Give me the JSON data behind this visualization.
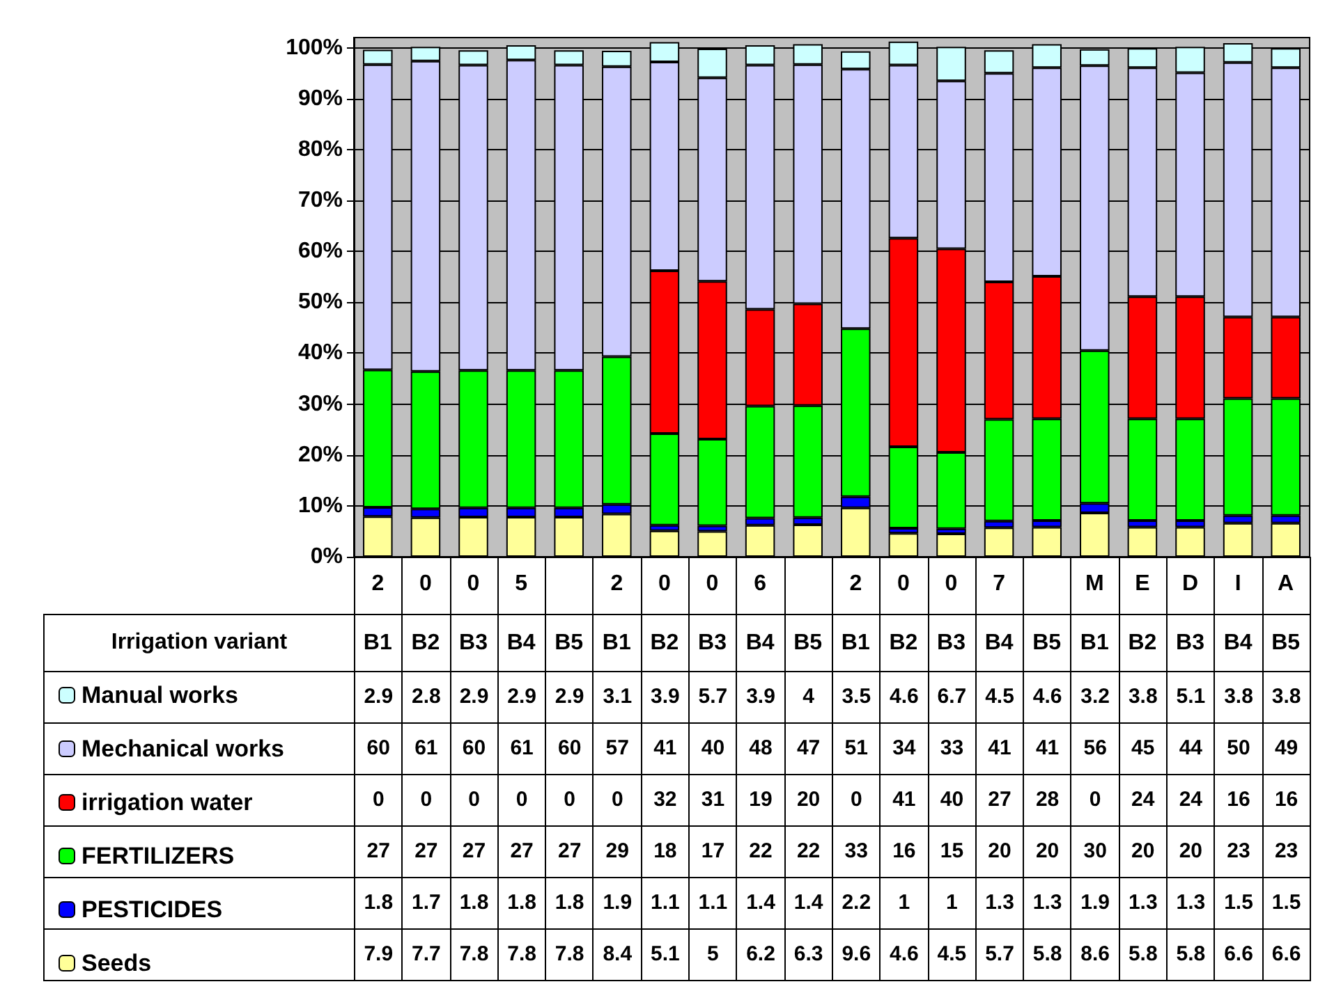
{
  "chart_data": {
    "type": "bar",
    "stacked": true,
    "xlabel": "Irrigation variant",
    "categories": [
      "B1",
      "B2",
      "B3",
      "B4",
      "B5",
      "B1",
      "B2",
      "B3",
      "B4",
      "B5",
      "B1",
      "B2",
      "B3",
      "B4",
      "B5",
      "B1",
      "B2",
      "B3",
      "B4",
      "B5"
    ],
    "annotations": [
      "2 0 0 5",
      "2 0 0 6",
      "2 0 0 7",
      "M E D I A"
    ],
    "series": [
      {
        "name": "Seeds",
        "color": "#ffff99",
        "values": [
          7.9,
          7.7,
          7.8,
          7.8,
          7.8,
          8.4,
          5.1,
          5,
          6.2,
          6.3,
          9.6,
          4.6,
          4.5,
          5.7,
          5.8,
          8.6,
          5.8,
          5.8,
          6.6,
          6.6
        ]
      },
      {
        "name": "PESTICIDES",
        "color": "#0000ff",
        "values": [
          1.8,
          1.7,
          1.8,
          1.8,
          1.8,
          1.9,
          1.1,
          1.1,
          1.4,
          1.4,
          2.2,
          1,
          1,
          1.3,
          1.3,
          1.9,
          1.3,
          1.3,
          1.5,
          1.5
        ]
      },
      {
        "name": "FERTILIZERS",
        "color": "#00ff00",
        "values": [
          27,
          27,
          27,
          27,
          27,
          29,
          18,
          17,
          22,
          22,
          33,
          16,
          15,
          20,
          20,
          30,
          20,
          20,
          23,
          23
        ]
      },
      {
        "name": "irrigation water",
        "color": "#ff0000",
        "values": [
          0,
          0,
          0,
          0,
          0,
          0,
          32,
          31,
          19,
          20,
          0,
          41,
          40,
          27,
          28,
          0,
          24,
          24,
          16,
          16
        ]
      },
      {
        "name": "Mechanical works",
        "color": "#ccccff",
        "values": [
          60,
          61,
          60,
          61,
          60,
          57,
          41,
          40,
          48,
          47,
          51,
          34,
          33,
          41,
          41,
          56,
          45,
          44,
          50,
          49
        ]
      },
      {
        "name": "Manual works",
        "color": "#ccffff",
        "values": [
          2.9,
          2.8,
          2.9,
          2.9,
          2.9,
          3.1,
          3.9,
          5.7,
          3.9,
          4,
          3.5,
          4.6,
          6.7,
          4.5,
          4.6,
          3.2,
          3.8,
          5.1,
          3.8,
          3.8
        ]
      }
    ],
    "ylim": [
      0,
      102
    ],
    "yticks": [
      {
        "value": 0,
        "label": "0%"
      },
      {
        "value": 10,
        "label": "10%"
      },
      {
        "value": 20,
        "label": "20%"
      },
      {
        "value": 30,
        "label": "30%"
      },
      {
        "value": 40,
        "label": "40%"
      },
      {
        "value": 50,
        "label": "50%"
      },
      {
        "value": 60,
        "label": "60%"
      },
      {
        "value": 70,
        "label": "70%"
      },
      {
        "value": 80,
        "label": "80%"
      },
      {
        "value": 90,
        "label": "90%"
      },
      {
        "value": 100,
        "label": "100%"
      }
    ],
    "grid": "y",
    "legend": "bottom left",
    "data_labels": true
  }
}
